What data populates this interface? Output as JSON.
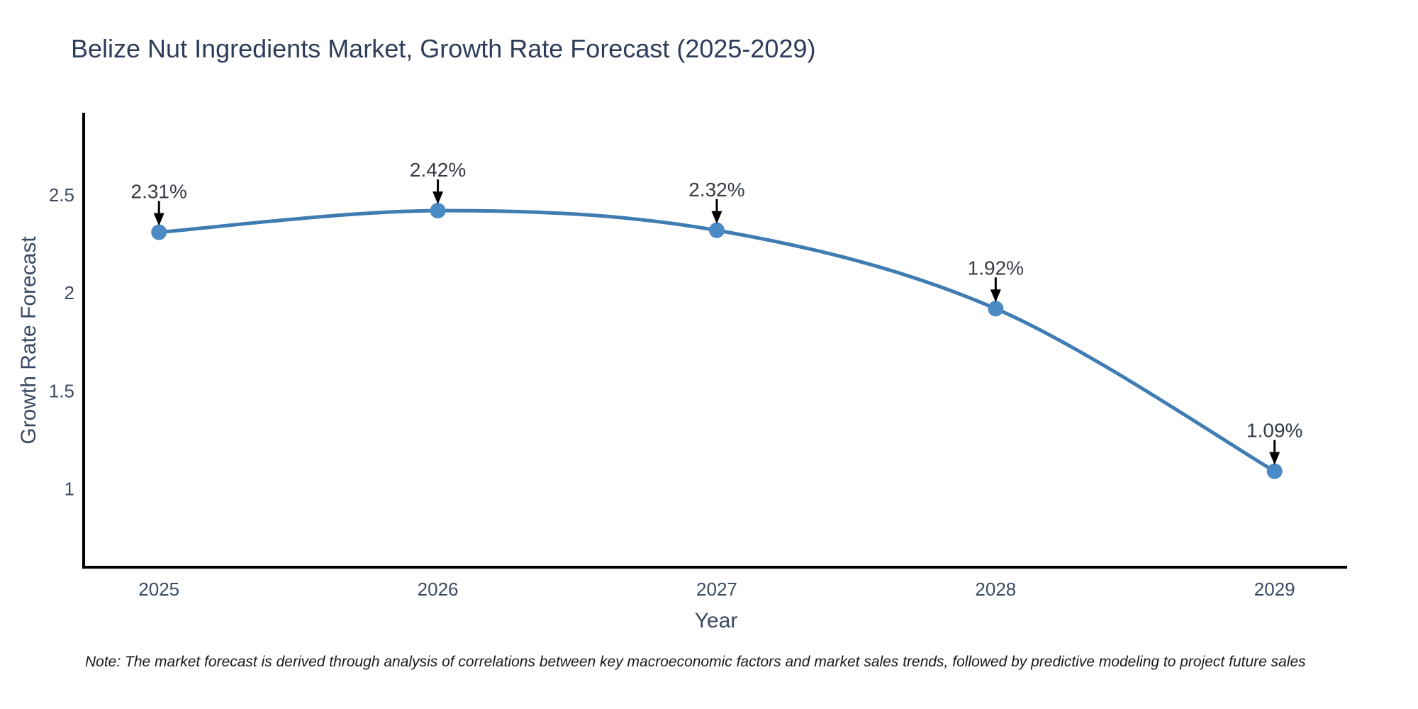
{
  "title": "Belize Nut Ingredients Market, Growth Rate Forecast (2025-2029)",
  "note": "Note: The market forecast is derived through analysis of correlations between key macroeconomic factors and market sales trends, followed by predictive modeling to project future sales",
  "chart_data": {
    "type": "line",
    "title": "Belize Nut Ingredients Market, Growth Rate Forecast (2025-2029)",
    "x": [
      2025,
      2026,
      2027,
      2028,
      2029
    ],
    "series": [
      {
        "name": "Growth Rate Forecast",
        "values": [
          2.31,
          2.42,
          2.32,
          1.92,
          1.09
        ]
      }
    ],
    "point_labels": [
      "2.31%",
      "2.42%",
      "2.32%",
      "1.92%",
      "1.09%"
    ],
    "xlabel": "Year",
    "ylabel": "Growth Rate Forecast",
    "xticks": [
      "2025",
      "2026",
      "2027",
      "2028",
      "2029"
    ],
    "yticks": [
      1,
      1.5,
      2,
      2.5
    ],
    "xlim": [
      2024.73,
      2029.26
    ],
    "ylim": [
      0.6,
      2.92
    ],
    "grid": false,
    "legend": false,
    "annotations": "each data point labeled with its percentage value and a black downward arrow",
    "colors": {
      "line": "#3f7cb2",
      "marker": "#4a8ac5",
      "axis_spine": "#000000",
      "arrow": "#000000",
      "title_text": "#2e3d59",
      "tick_text": "#3b4b61",
      "annotation_text": "#363c46",
      "note_text": "#1a1a1a",
      "background": "#ffffff"
    }
  }
}
